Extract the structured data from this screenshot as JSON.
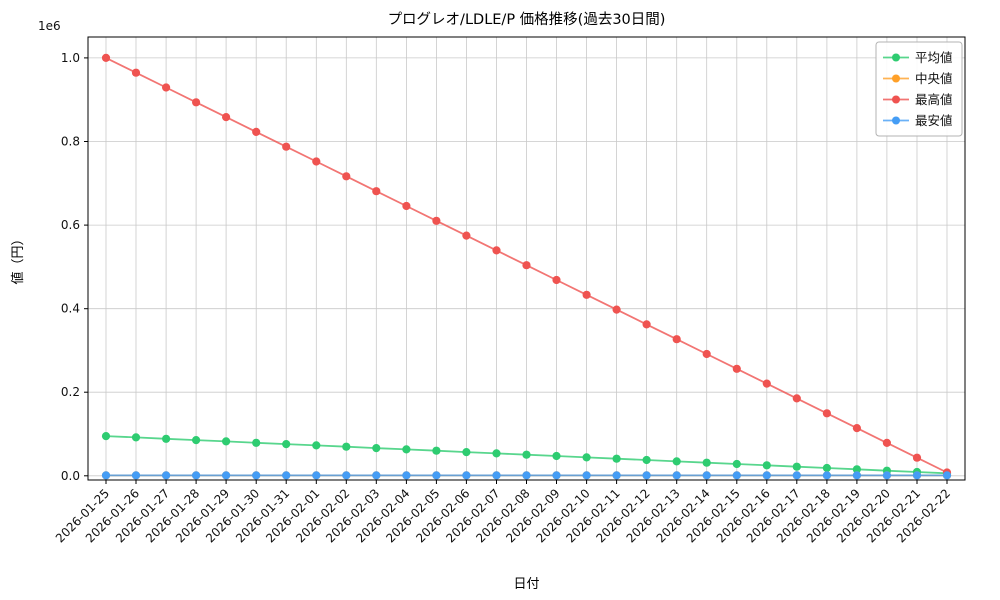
{
  "chart_data": {
    "type": "line",
    "title": "プログレオ/LDLE/P 価格推移(過去30日間)",
    "xlabel": "日付",
    "ylabel": "値（円）",
    "y_offset_label": "1e6",
    "grid": true,
    "legend_position": "upper right",
    "ylim": [
      -10000,
      1050000
    ],
    "yticks": [
      0,
      200000,
      400000,
      600000,
      800000,
      1000000
    ],
    "ytick_labels": [
      "0.0",
      "0.2",
      "0.4",
      "0.6",
      "0.8",
      "1.0"
    ],
    "categories": [
      "2026-01-25",
      "2026-01-26",
      "2026-01-27",
      "2026-01-28",
      "2026-01-29",
      "2026-01-30",
      "2026-01-31",
      "2026-02-01",
      "2026-02-02",
      "2026-02-03",
      "2026-02-04",
      "2026-02-05",
      "2026-02-06",
      "2026-02-07",
      "2026-02-08",
      "2026-02-09",
      "2026-02-10",
      "2026-02-11",
      "2026-02-12",
      "2026-02-13",
      "2026-02-14",
      "2026-02-15",
      "2026-02-16",
      "2026-02-17",
      "2026-02-18",
      "2026-02-19",
      "2026-02-20",
      "2026-02-21",
      "2026-02-22"
    ],
    "series": [
      {
        "key": "average",
        "name": "平均値",
        "color": "#2ecc71",
        "values": [
          95000,
          91821,
          88643,
          85464,
          82286,
          79107,
          75929,
          72750,
          69571,
          66393,
          63214,
          60036,
          56857,
          53679,
          50500,
          47321,
          44143,
          40964,
          37786,
          34607,
          31429,
          28250,
          25071,
          21893,
          18714,
          15536,
          12357,
          9179,
          6000
        ]
      },
      {
        "key": "median",
        "name": "中央値",
        "color": "#ffa028",
        "values": [
          1000,
          1000,
          1000,
          1000,
          1000,
          1000,
          1000,
          1000,
          1000,
          1000,
          1000,
          1000,
          1000,
          1000,
          1000,
          1000,
          1000,
          1000,
          1000,
          1000,
          1000,
          1000,
          1000,
          1000,
          1000,
          1000,
          1000,
          1000,
          1000
        ]
      },
      {
        "key": "max",
        "name": "最高値",
        "color": "#ef5350",
        "values": [
          1000000,
          964571,
          929143,
          893714,
          858286,
          822857,
          787429,
          752000,
          716571,
          681143,
          645714,
          610286,
          574857,
          539429,
          504000,
          468571,
          433143,
          397714,
          362286,
          326857,
          291429,
          256000,
          220571,
          185143,
          149714,
          114286,
          78857,
          43429,
          8000
        ]
      },
      {
        "key": "min",
        "name": "最安値",
        "color": "#459df5",
        "values": [
          1000,
          1000,
          1000,
          1000,
          1000,
          1000,
          1000,
          1000,
          1000,
          1000,
          1000,
          1000,
          1000,
          1000,
          1000,
          1000,
          1000,
          1000,
          1000,
          1000,
          1000,
          1000,
          1000,
          1000,
          1000,
          1000,
          1000,
          1000,
          1000
        ]
      }
    ]
  }
}
